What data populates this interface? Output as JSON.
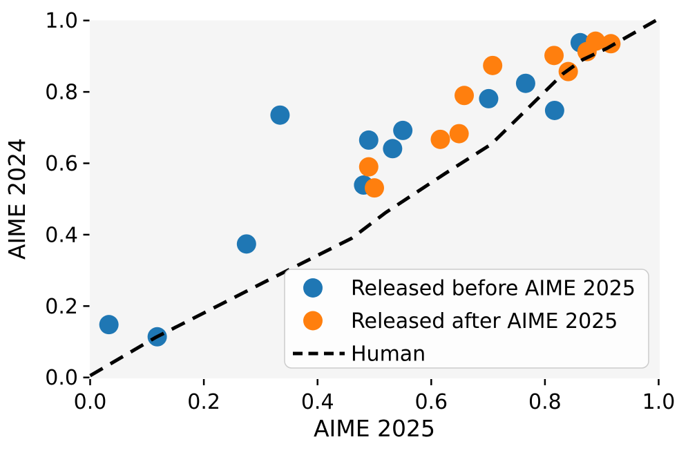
{
  "chart_data": {
    "type": "scatter",
    "title": "",
    "xlabel": "AIME 2025",
    "ylabel": "AIME 2024",
    "xlim": [
      0.0,
      1.0
    ],
    "ylim": [
      0.0,
      1.0
    ],
    "grid": false,
    "plot_background": "#f5f5f5",
    "x_tick_labels": [
      "0.0",
      "0.2",
      "0.4",
      "0.6",
      "0.8",
      "1.0"
    ],
    "x_tick_values": [
      0.0,
      0.2,
      0.4,
      0.6,
      0.8,
      1.0
    ],
    "y_tick_labels": [
      "0.0",
      "0.2",
      "0.4",
      "0.6",
      "0.8",
      "1.0"
    ],
    "y_tick_values": [
      0.0,
      0.2,
      0.4,
      0.6,
      0.8,
      1.0
    ],
    "legend_position": "lower-right-inside",
    "series": [
      {
        "name": "Released before AIME 2025",
        "color": "#1f77b4",
        "marker": "circle",
        "points": [
          [
            0.033,
            0.148
          ],
          [
            0.118,
            0.114
          ],
          [
            0.275,
            0.374
          ],
          [
            0.334,
            0.735
          ],
          [
            0.481,
            0.539
          ],
          [
            0.49,
            0.665
          ],
          [
            0.532,
            0.641
          ],
          [
            0.55,
            0.692
          ],
          [
            0.701,
            0.781
          ],
          [
            0.766,
            0.824
          ],
          [
            0.817,
            0.748
          ],
          [
            0.862,
            0.938
          ]
        ]
      },
      {
        "name": "Released after AIME 2025",
        "color": "#ff7f0e",
        "marker": "circle",
        "points": [
          [
            0.49,
            0.59
          ],
          [
            0.5,
            0.531
          ],
          [
            0.616,
            0.667
          ],
          [
            0.649,
            0.683
          ],
          [
            0.658,
            0.79
          ],
          [
            0.708,
            0.874
          ],
          [
            0.816,
            0.902
          ],
          [
            0.841,
            0.857
          ],
          [
            0.874,
            0.913
          ],
          [
            0.889,
            0.942
          ],
          [
            0.916,
            0.935
          ]
        ]
      }
    ],
    "human_line": {
      "name": "Human",
      "color": "#000000",
      "style": "dashed",
      "points": [
        [
          0.0,
          0.005
        ],
        [
          0.115,
          0.112
        ],
        [
          0.23,
          0.205
        ],
        [
          0.31,
          0.27
        ],
        [
          0.46,
          0.39
        ],
        [
          0.52,
          0.462
        ],
        [
          0.625,
          0.572
        ],
        [
          0.706,
          0.654
        ],
        [
          0.77,
          0.754
        ],
        [
          0.832,
          0.851
        ],
        [
          0.866,
          0.89
        ],
        [
          0.909,
          0.922
        ],
        [
          0.995,
          1.0
        ]
      ]
    }
  }
}
